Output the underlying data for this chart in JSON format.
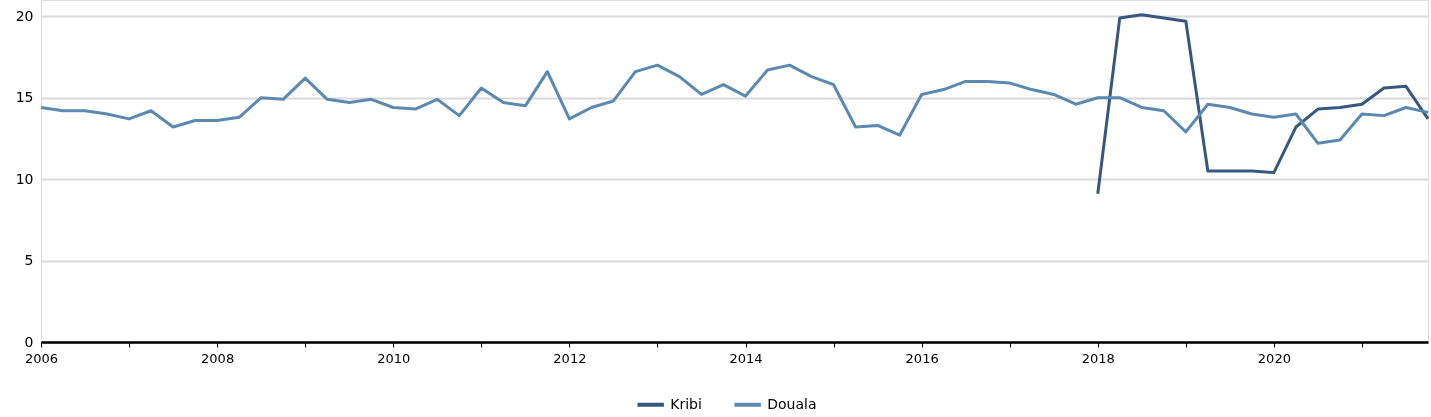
{
  "chart_data": {
    "type": "line",
    "series": [
      {
        "name": "Kribi",
        "color": "#36587f",
        "x": [
          2018,
          2018.25,
          2018.5,
          2018.75,
          2019,
          2019.25,
          2019.5,
          2019.75,
          2020,
          2020.25,
          2020.5,
          2020.75,
          2021,
          2021.25,
          2021.5,
          2021.75
        ],
        "values": [
          9.1,
          19.9,
          20.1,
          19.9,
          19.7,
          10.5,
          10.5,
          10.5,
          10.4,
          13.2,
          14.3,
          14.4,
          14.6,
          15.6,
          15.7,
          13.7
        ]
      },
      {
        "name": "Douala",
        "color": "#5b89b0",
        "x": [
          2006,
          2006.25,
          2006.5,
          2006.75,
          2007,
          2007.25,
          2007.5,
          2007.75,
          2008,
          2008.25,
          2008.5,
          2008.75,
          2009,
          2009.25,
          2009.5,
          2009.75,
          2010,
          2010.25,
          2010.5,
          2010.75,
          2011,
          2011.25,
          2011.5,
          2011.75,
          2012,
          2012.25,
          2012.5,
          2012.75,
          2013,
          2013.25,
          2013.5,
          2013.75,
          2014,
          2014.25,
          2014.5,
          2014.75,
          2015,
          2015.25,
          2015.5,
          2015.75,
          2016,
          2016.25,
          2016.5,
          2016.75,
          2017,
          2017.25,
          2017.5,
          2017.75,
          2018,
          2018.25,
          2018.5,
          2018.75,
          2019,
          2019.25,
          2019.5,
          2019.75,
          2020,
          2020.25,
          2020.5,
          2020.75,
          2021,
          2021.25,
          2021.5,
          2021.75
        ],
        "values": [
          14.4,
          14.2,
          14.2,
          14.0,
          13.7,
          14.2,
          13.2,
          13.6,
          13.6,
          13.8,
          15.0,
          14.9,
          16.2,
          14.9,
          14.7,
          14.9,
          14.4,
          14.3,
          14.9,
          13.9,
          15.6,
          14.7,
          14.5,
          16.6,
          13.7,
          14.4,
          14.8,
          16.6,
          17.0,
          16.3,
          15.2,
          15.8,
          15.1,
          16.7,
          17.0,
          16.3,
          15.8,
          13.2,
          13.3,
          12.7,
          15.2,
          15.5,
          16.0,
          16.0,
          15.9,
          15.5,
          15.2,
          14.6,
          15.0,
          15.0,
          14.4,
          14.2,
          12.9,
          14.6,
          14.4,
          14.0,
          13.8,
          14.0,
          12.2,
          12.4,
          14.0,
          13.9,
          14.4,
          14.1
        ]
      }
    ],
    "xlim": [
      2006,
      2021.75
    ],
    "xticks": [
      2006,
      {
        "value": 2007,
        "label": null
      },
      2008,
      {
        "value": 2009,
        "label": null
      },
      2010,
      {
        "value": 2011,
        "label": null
      },
      2012,
      {
        "value": 2013,
        "label": null
      },
      2014,
      {
        "value": 2015,
        "label": null
      },
      2016,
      {
        "value": 2017,
        "label": null
      },
      2018,
      {
        "value": 2019,
        "label": null
      },
      2020,
      {
        "value": 2021,
        "label": null
      }
    ],
    "ylim": [
      0,
      21
    ],
    "yticks": [
      0,
      5,
      10,
      15,
      20
    ],
    "grid": "y",
    "legend": "bottom",
    "line_style": "solid"
  }
}
